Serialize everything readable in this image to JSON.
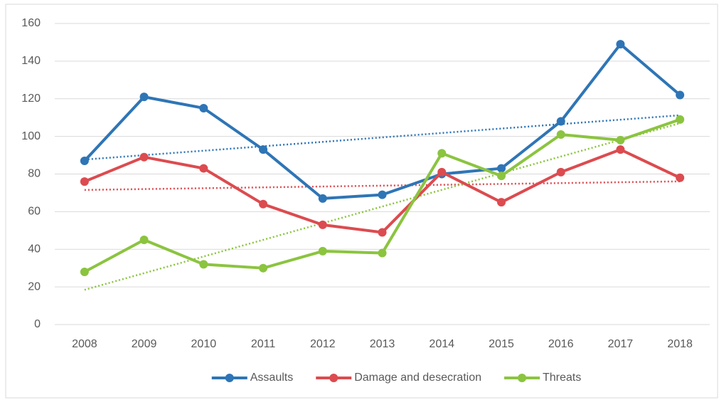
{
  "chart_data": {
    "type": "line",
    "categories": [
      "2008",
      "2009",
      "2010",
      "2011",
      "2012",
      "2013",
      "2014",
      "2015",
      "2016",
      "2017",
      "2018"
    ],
    "series": [
      {
        "name": "Assaults",
        "color": "#2e75b6",
        "values": [
          87,
          121,
          115,
          93,
          67,
          69,
          80,
          83,
          108,
          149,
          122
        ]
      },
      {
        "name": "Damage and desecration",
        "color": "#dc4b4f",
        "values": [
          76,
          89,
          83,
          64,
          53,
          49,
          81,
          65,
          81,
          93,
          78
        ]
      },
      {
        "name": "Threats",
        "color": "#8bc43f",
        "values": [
          28,
          45,
          32,
          30,
          39,
          38,
          91,
          79,
          101,
          98,
          109
        ]
      }
    ],
    "ylim": [
      0,
      160
    ],
    "yticks": [
      0,
      20,
      40,
      60,
      80,
      100,
      120,
      140,
      160
    ],
    "grid": true,
    "trendline": "linear",
    "legend": "bottom"
  }
}
